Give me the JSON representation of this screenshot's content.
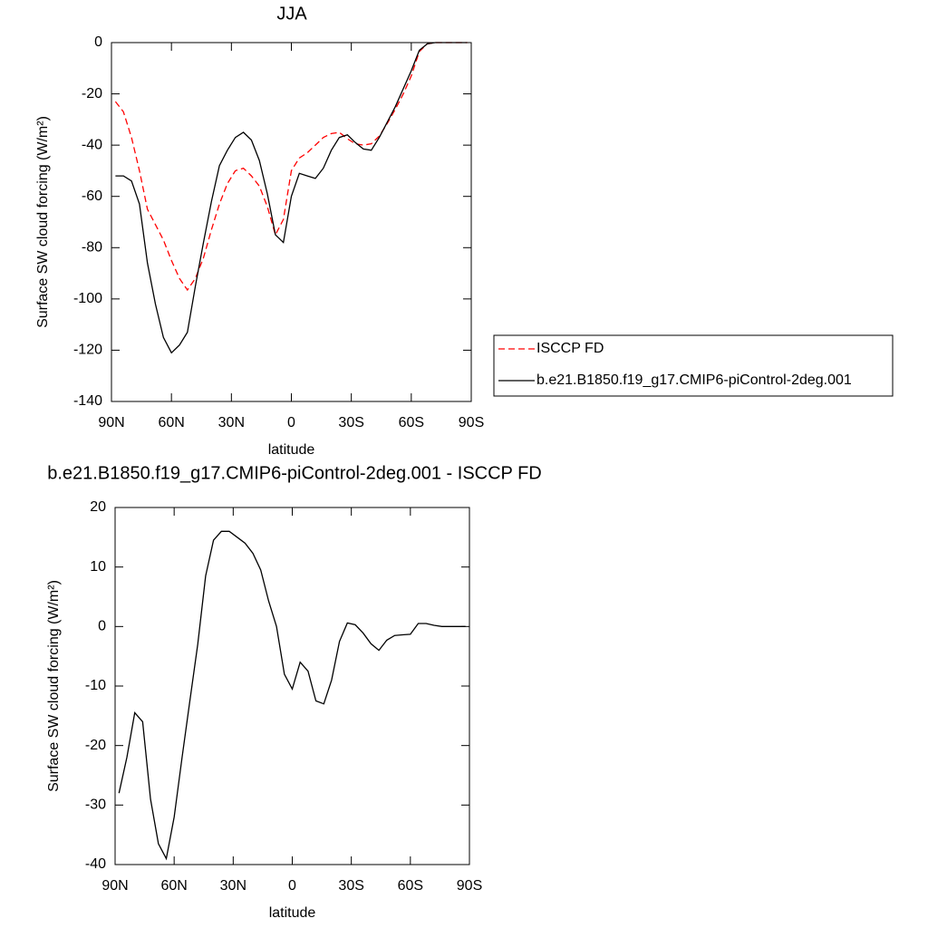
{
  "chart_data": [
    {
      "type": "line",
      "title": "JJA",
      "x_label": "latitude",
      "y_label": "Surface SW cloud forcing (W/m²)",
      "x": [
        88,
        84,
        80,
        76,
        72,
        68,
        64,
        60,
        56,
        52,
        48,
        44,
        40,
        36,
        32,
        28,
        24,
        20,
        16,
        12,
        8,
        4,
        0,
        -4,
        -8,
        -12,
        -16,
        -20,
        -24,
        -28,
        -32,
        -36,
        -40,
        -44,
        -48,
        -52,
        -56,
        -60,
        -64,
        -68,
        -72,
        -76,
        -80,
        -84,
        -88
      ],
      "series": [
        {
          "name": "ISCCP FD",
          "color": "#ff0000",
          "line_style": "dashed",
          "values": [
            -23,
            -27,
            -37,
            -50,
            -65,
            -71,
            -77,
            -85,
            -92,
            -96.5,
            -92,
            -84,
            -73,
            -63,
            -55,
            -50,
            -49,
            -52,
            -56,
            -64,
            -75,
            -69,
            -50,
            -45,
            -43,
            -40,
            -37,
            -35.5,
            -35,
            -37.5,
            -39.5,
            -40,
            -39.5,
            -36.5,
            -31.5,
            -26,
            -20,
            -13,
            -3.5,
            -0.5,
            0,
            0,
            0,
            0,
            0
          ]
        },
        {
          "name": "b.e21.B1850.f19_g17.CMIP6-piControl-2deg.001",
          "color": "#000000",
          "line_style": "solid",
          "values": [
            -52,
            -52,
            -54,
            -63,
            -86,
            -102,
            -115,
            -121,
            -118,
            -113,
            -95,
            -78,
            -62,
            -48,
            -42,
            -37,
            -35,
            -38,
            -46,
            -59,
            -75,
            -78,
            -60,
            -51,
            -52,
            -53,
            -49,
            -42,
            -37,
            -36,
            -39,
            -41.5,
            -42,
            -37,
            -31,
            -25,
            -18,
            -11,
            -3,
            -0.5,
            0,
            0,
            0,
            0,
            0
          ]
        }
      ],
      "xlim": [
        90,
        -90
      ],
      "xticks": [
        {
          "value": 90,
          "label": "90N"
        },
        {
          "value": 60,
          "label": "60N"
        },
        {
          "value": 30,
          "label": "30N"
        },
        0,
        {
          "value": -30,
          "label": "30S"
        },
        {
          "value": -60,
          "label": "60S"
        },
        {
          "value": -90,
          "label": "90S"
        }
      ],
      "ylim": [
        -140,
        0
      ],
      "yticks": [
        -140,
        -120,
        -100,
        -80,
        -60,
        -40,
        -20,
        0
      ],
      "legend": "right"
    },
    {
      "type": "line",
      "title": "b.e21.B1850.f19_g17.CMIP6-piControl-2deg.001 - ISCCP FD",
      "x_label": "latitude",
      "y_label": "Surface SW cloud forcing (W/m²)",
      "x": [
        88,
        84,
        80,
        76,
        72,
        68,
        64,
        60,
        56,
        52,
        48,
        44,
        40,
        36,
        32,
        28,
        24,
        20,
        16,
        12,
        8,
        4,
        0,
        -4,
        -8,
        -12,
        -16,
        -20,
        -24,
        -28,
        -32,
        -36,
        -40,
        -44,
        -48,
        -52,
        -56,
        -60,
        -64,
        -68,
        -72,
        -76,
        -80,
        -84,
        -88
      ],
      "series": [
        {
          "color": "#000000",
          "line_style": "solid",
          "values": [
            -28,
            -22,
            -14.5,
            -16,
            -29,
            -36.5,
            -39,
            -32,
            -22,
            -12.5,
            -3,
            8.5,
            14.5,
            16,
            16,
            15,
            14,
            12.3,
            9.5,
            4.3,
            0,
            -8,
            -10.5,
            -6,
            -7.5,
            -12.5,
            -13,
            -9,
            -2.5,
            0.6,
            0.3,
            -1.1,
            -2.9,
            -4,
            -2.3,
            -1.5,
            -1.4,
            -1.3,
            0.5,
            0.5,
            0.2,
            0,
            0,
            0,
            0
          ]
        }
      ],
      "xlim": [
        90,
        -90
      ],
      "xticks": [
        {
          "value": 90,
          "label": "90N"
        },
        {
          "value": 60,
          "label": "60N"
        },
        {
          "value": 30,
          "label": "30N"
        },
        0,
        {
          "value": -30,
          "label": "30S"
        },
        {
          "value": -60,
          "label": "60S"
        },
        {
          "value": -90,
          "label": "90S"
        }
      ],
      "ylim": [
        -40,
        20
      ],
      "yticks": [
        -40,
        -30,
        -20,
        -10,
        0,
        10,
        20
      ]
    }
  ]
}
